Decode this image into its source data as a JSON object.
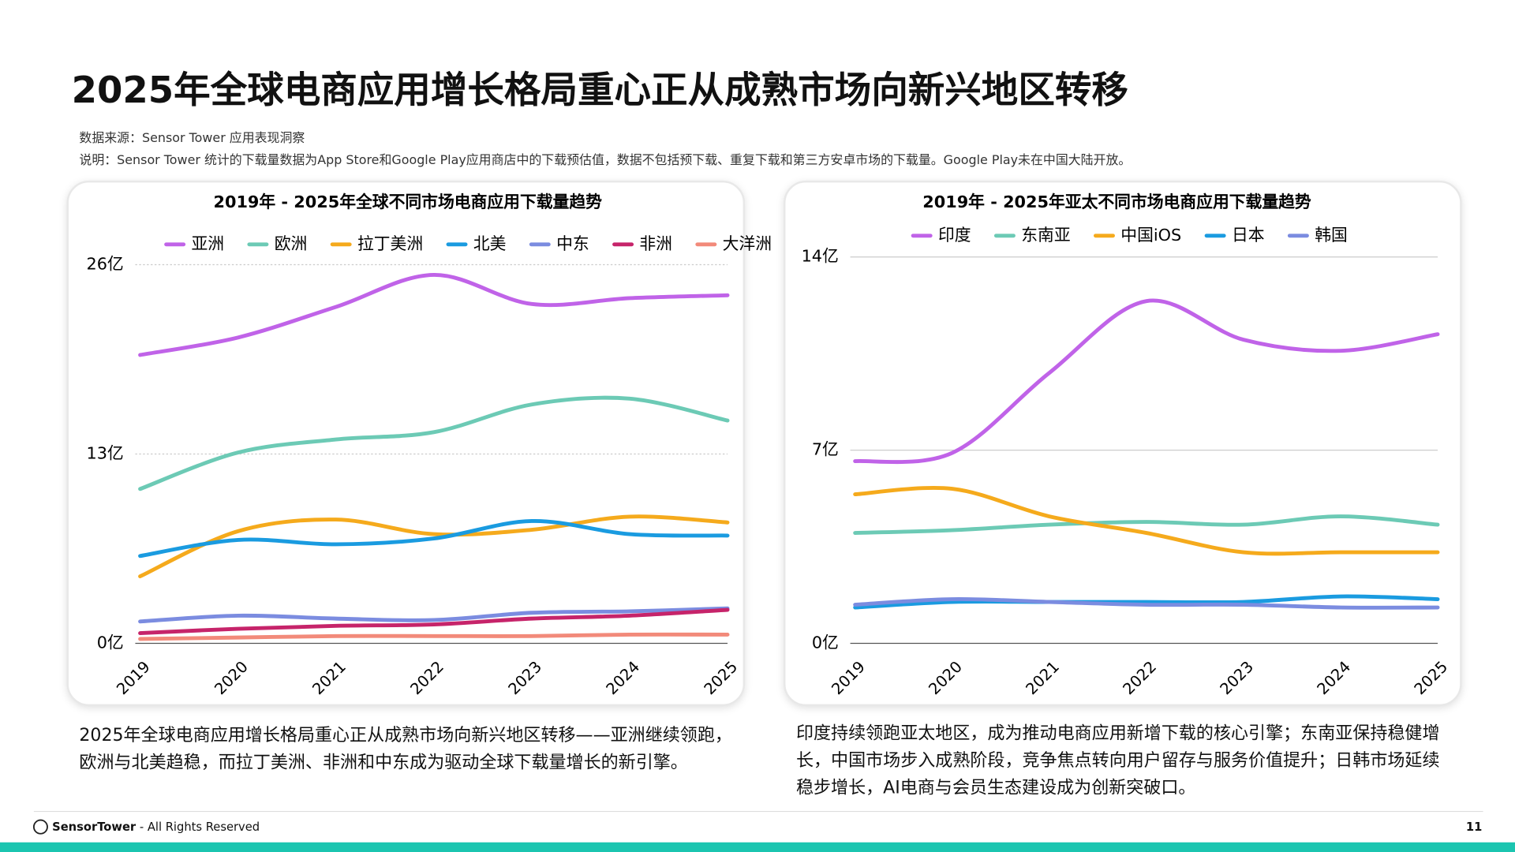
{
  "title": "2025年全球电商应用增长格局重心正从成熟市场向新兴地区转移",
  "source": "数据来源：Sensor Tower 应用表现洞察",
  "note": "说明：Sensor Tower 统计的下载量数据为App Store和Google Play应用商店中的下载预估值，数据不包括预下载、重复下载和第三方安卓市场的下载量。Google Play未在中国大陆开放。",
  "chart_data": [
    {
      "type": "line",
      "title": "2019年 - 2025年全球不同市场电商应用下载量趋势",
      "x": [
        "2019",
        "2020",
        "2021",
        "2022",
        "2023",
        "2024",
        "2025"
      ],
      "ylim": [
        0,
        26
      ],
      "yticks": [
        {
          "value": 0,
          "label": "0亿"
        },
        {
          "value": 13,
          "label": "13亿"
        },
        {
          "value": 26,
          "label": "26亿"
        }
      ],
      "grid": true,
      "series": [
        {
          "name": "亚洲",
          "color": "#c063e8",
          "values": [
            19.8,
            21.0,
            23.1,
            25.3,
            23.3,
            23.7,
            23.9
          ]
        },
        {
          "name": "欧洲",
          "color": "#6ccab5",
          "values": [
            10.6,
            13.1,
            14.0,
            14.5,
            16.4,
            16.8,
            15.3
          ]
        },
        {
          "name": "拉丁美洲",
          "color": "#f5aa1c",
          "values": [
            4.6,
            7.7,
            8.5,
            7.5,
            7.8,
            8.7,
            8.3
          ]
        },
        {
          "name": "北美",
          "color": "#1a9be0",
          "values": [
            6.0,
            7.1,
            6.8,
            7.2,
            8.4,
            7.5,
            7.4
          ]
        },
        {
          "name": "中东",
          "color": "#7b8ce0",
          "values": [
            1.5,
            1.9,
            1.7,
            1.6,
            2.1,
            2.2,
            2.4
          ]
        },
        {
          "name": "非洲",
          "color": "#c6246a",
          "values": [
            0.7,
            1.0,
            1.2,
            1.3,
            1.7,
            1.9,
            2.3
          ]
        },
        {
          "name": "大洋洲",
          "color": "#f28a7a",
          "values": [
            0.3,
            0.4,
            0.5,
            0.5,
            0.5,
            0.6,
            0.6
          ]
        }
      ]
    },
    {
      "type": "line",
      "title": "2019年 - 2025年亚太不同市场电商应用下载量趋势",
      "x": [
        "2019",
        "2020",
        "2021",
        "2022",
        "2023",
        "2024",
        "2025"
      ],
      "ylim": [
        0,
        14
      ],
      "yticks": [
        {
          "value": 0,
          "label": "0亿"
        },
        {
          "value": 7,
          "label": "7亿"
        },
        {
          "value": 14,
          "label": "14亿"
        }
      ],
      "grid": true,
      "series": [
        {
          "name": "印度",
          "color": "#c063e8",
          "values": [
            6.6,
            6.9,
            9.8,
            12.4,
            11.0,
            10.6,
            11.2
          ]
        },
        {
          "name": "东南亚",
          "color": "#6ccab5",
          "values": [
            4.0,
            4.1,
            4.3,
            4.4,
            4.3,
            4.6,
            4.3
          ]
        },
        {
          "name": "中国iOS",
          "color": "#f5aa1c",
          "values": [
            5.4,
            5.6,
            4.6,
            4.0,
            3.3,
            3.3,
            3.3
          ]
        },
        {
          "name": "日本",
          "color": "#1a9be0",
          "values": [
            1.3,
            1.5,
            1.5,
            1.5,
            1.5,
            1.7,
            1.6
          ]
        },
        {
          "name": "韩国",
          "color": "#7b8ce0",
          "values": [
            1.4,
            1.6,
            1.5,
            1.4,
            1.4,
            1.3,
            1.3
          ]
        }
      ]
    }
  ],
  "captions": [
    "2025年全球电商应用增长格局重心正从成熟市场向新兴地区转移——亚洲继续领跑，欧洲与北美趋稳，而拉丁美洲、非洲和中东成为驱动全球下载量增长的新引擎。",
    "印度持续领跑亚太地区，成为推动电商应用新增下载的核心引擎；东南亚保持稳健增长，中国市场步入成熟阶段，竞争焦点转向用户留存与服务价值提升；日韩市场延续稳步增长，AI电商与会员生态建设成为创新突破口。"
  ],
  "footer": {
    "brand": "SensorTower",
    "rights": " - All Rights Reserved",
    "page": "11"
  }
}
